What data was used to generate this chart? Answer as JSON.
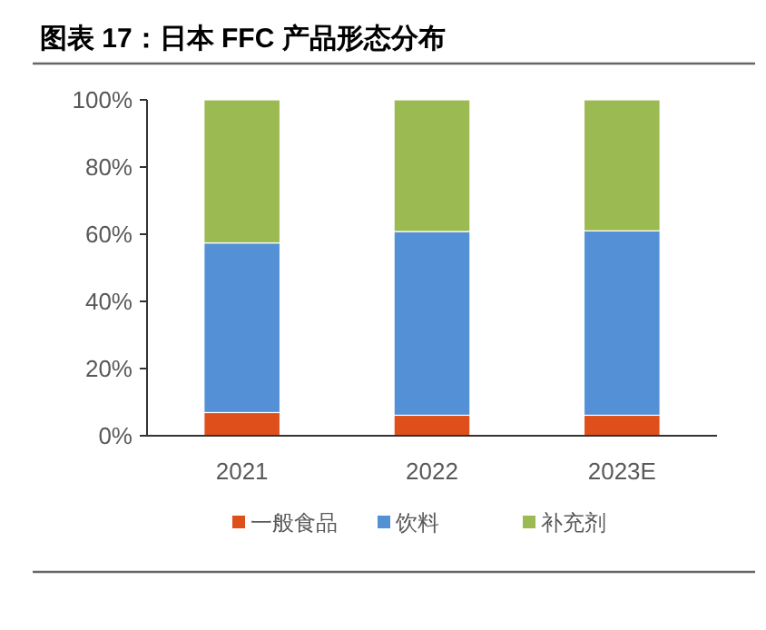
{
  "chart_data": {
    "type": "bar",
    "title": "图表 17：日本 FFC 产品形态分布",
    "stacked": true,
    "categories": [
      "2021",
      "2022",
      "2023E"
    ],
    "series": [
      {
        "name": "一般食品",
        "color": "#de4f1c",
        "values": [
          6.9,
          6.1,
          6.1
        ]
      },
      {
        "name": "饮料",
        "color": "#5490d6",
        "values": [
          50.5,
          54.7,
          54.9
        ]
      },
      {
        "name": "补充剂",
        "color": "#9bba52",
        "values": [
          42.6,
          39.2,
          39.0
        ]
      }
    ],
    "ylim": [
      0,
      100
    ],
    "yticks": [
      {
        "value": 0,
        "label": "0%"
      },
      {
        "value": 20,
        "label": "20%"
      },
      {
        "value": 40,
        "label": "40%"
      },
      {
        "value": 60,
        "label": "60%"
      },
      {
        "value": 80,
        "label": "80%"
      },
      {
        "value": 100,
        "label": "100%"
      }
    ],
    "grid": false,
    "legend": "bottom"
  }
}
